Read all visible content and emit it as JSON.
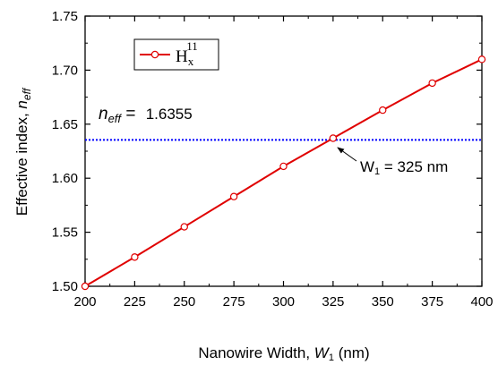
{
  "chart_data": {
    "type": "line",
    "x": [
      200,
      225,
      250,
      275,
      300,
      325,
      350,
      375,
      400
    ],
    "series": [
      {
        "name": "Hx11",
        "values": [
          1.5,
          1.527,
          1.555,
          1.583,
          1.611,
          1.637,
          1.663,
          1.688,
          1.71
        ],
        "color": "#e00000",
        "marker": "open-circle"
      }
    ],
    "reference_line": {
      "y": 1.6355,
      "color": "#0000ff",
      "style": "dotted"
    },
    "intersection_x": 325,
    "xlim": [
      200,
      400
    ],
    "ylim": [
      1.5,
      1.75
    ],
    "x_ticks": [
      "200",
      "225",
      "250",
      "275",
      "300",
      "325",
      "350",
      "375",
      "400"
    ],
    "y_ticks": [
      "1.50",
      "1.55",
      "1.60",
      "1.65",
      "1.70",
      "1.75"
    ],
    "xlabel": {
      "prefix": "Nanowire Width, ",
      "var": "W",
      "sub": "1",
      "suffix": " (nm)"
    },
    "ylabel": {
      "prefix": "Effective index, ",
      "var": "n",
      "sub": "eff"
    },
    "legend": {
      "main": "H",
      "sub": "x",
      "sup": "11",
      "position": "top-left"
    },
    "annotation_neff": {
      "var": "n",
      "sub": "eff",
      "eq": " = ",
      "value": "1.6355"
    },
    "annotation_w": {
      "var": "W",
      "sub": "1",
      "text": " = 325 nm"
    },
    "grid": false
  }
}
